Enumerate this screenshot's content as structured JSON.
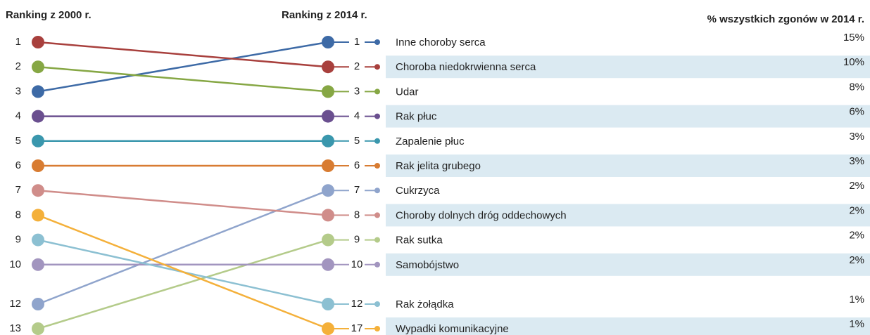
{
  "chart_data": {
    "type": "slope",
    "left_title": "Ranking z 2000 r.",
    "right_title": "Ranking z 2014 r.",
    "value_title": "% wszystkich zgonów w 2014 r.",
    "series": [
      {
        "name": "Inne choroby serca",
        "color": "#3d6aa6",
        "rank_2000": 3,
        "rank_2014": 1,
        "value": 15,
        "value_label": "15%"
      },
      {
        "name": "Choroba niedokrwienna serca",
        "color": "#a8403d",
        "rank_2000": 1,
        "rank_2014": 2,
        "value": 10,
        "value_label": "10%"
      },
      {
        "name": "Udar",
        "color": "#86a744",
        "rank_2000": 2,
        "rank_2014": 3,
        "value": 8,
        "value_label": "8%"
      },
      {
        "name": "Rak płuc",
        "color": "#6a4f8f",
        "rank_2000": 4,
        "rank_2014": 4,
        "value": 6,
        "value_label": "6%"
      },
      {
        "name": "Zapalenie płuc",
        "color": "#3a97ad",
        "rank_2000": 5,
        "rank_2014": 5,
        "value": 3,
        "value_label": "3%"
      },
      {
        "name": "Rak jelita grubego",
        "color": "#d87c32",
        "rank_2000": 6,
        "rank_2014": 6,
        "value": 3,
        "value_label": "3%"
      },
      {
        "name": "Cukrzyca",
        "color": "#8fa4cc",
        "rank_2000": 12,
        "rank_2014": 7,
        "value": 2,
        "value_label": "2%"
      },
      {
        "name": "Choroby dolnych dróg oddechowych",
        "color": "#d08d8a",
        "rank_2000": 7,
        "rank_2014": 8,
        "value": 2,
        "value_label": "2%"
      },
      {
        "name": "Rak sutka",
        "color": "#b4cb8a",
        "rank_2000": 13,
        "rank_2014": 9,
        "value": 2,
        "value_label": "2%"
      },
      {
        "name": "Samobójstwo",
        "color": "#a295bf",
        "rank_2000": 10,
        "rank_2014": 10,
        "value": 2,
        "value_label": "2%"
      },
      {
        "name": "Rak żołądka",
        "color": "#8cc0d2",
        "rank_2000": 9,
        "rank_2014": 12,
        "value": 1,
        "value_label": "1%"
      },
      {
        "name": "Wypadki komunikacyjne",
        "color": "#f4b03a",
        "rank_2000": 8,
        "rank_2014": 17,
        "value": 1,
        "value_label": "1%"
      }
    ]
  }
}
